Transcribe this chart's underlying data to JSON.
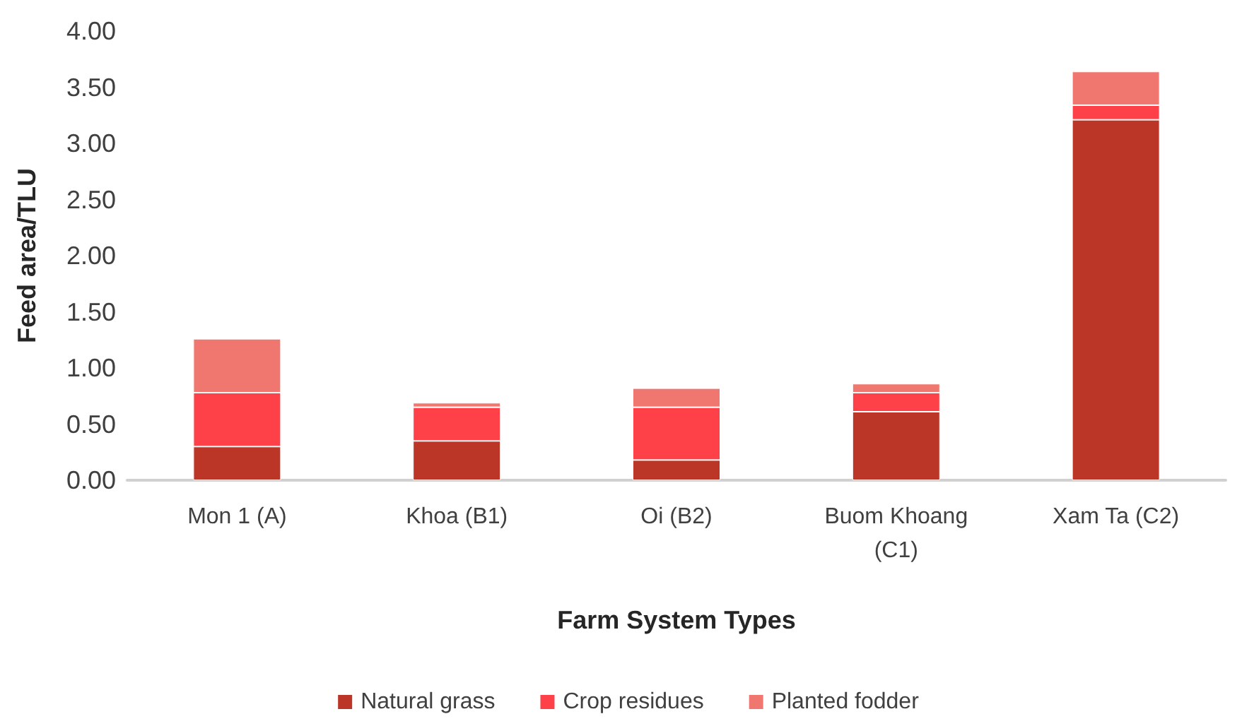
{
  "chart_data": {
    "type": "bar",
    "stacked": true,
    "xlabel": "Farm System Types",
    "ylabel": "Feed area/TLU",
    "categories": [
      "Mon 1 (A)",
      "Khoa (B1)",
      "Oi (B2)",
      "Buom Khoang\n(C1)",
      "Xam Ta (C2)"
    ],
    "series": [
      {
        "name": "Natural grass",
        "color": "#bb3626",
        "values": [
          0.3,
          0.35,
          0.18,
          0.61,
          3.21
        ]
      },
      {
        "name": "Crop residues",
        "color": "#fe4049",
        "values": [
          0.48,
          0.3,
          0.47,
          0.17,
          0.13
        ]
      },
      {
        "name": "Planted fodder",
        "color": "#f0776f",
        "values": [
          0.48,
          0.04,
          0.17,
          0.08,
          0.3
        ]
      }
    ],
    "ylim": [
      0,
      4
    ],
    "yticks": [
      {
        "value": 0,
        "label": "0.00"
      },
      {
        "value": 0.5,
        "label": "0.50"
      },
      {
        "value": 1,
        "label": "1.00"
      },
      {
        "value": 1.5,
        "label": "1.50"
      },
      {
        "value": 2,
        "label": "2.00"
      },
      {
        "value": 2.5,
        "label": "2.50"
      },
      {
        "value": 3,
        "label": "3.00"
      },
      {
        "value": 3.5,
        "label": "3.50"
      },
      {
        "value": 4,
        "label": "4.00"
      }
    ],
    "grid": false,
    "legend": "bottom"
  }
}
